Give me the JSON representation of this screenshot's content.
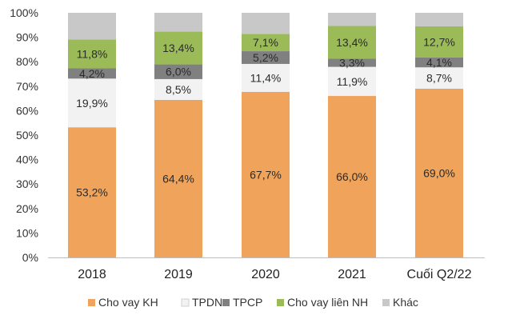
{
  "chart_data": {
    "type": "bar",
    "stacked": true,
    "categories": [
      "2018",
      "2019",
      "2020",
      "2021",
      "Cuối Q2/22"
    ],
    "ylim": [
      0,
      100
    ],
    "yticks": [
      "0%",
      "10%",
      "20%",
      "30%",
      "40%",
      "50%",
      "60%",
      "70%",
      "80%",
      "90%",
      "100%"
    ],
    "ytick_values": [
      0,
      10,
      20,
      30,
      40,
      50,
      60,
      70,
      80,
      90,
      100
    ],
    "series": [
      {
        "name": "Cho vay KH",
        "color": "#F0A35A",
        "values": [
          53.2,
          64.4,
          67.7,
          66.0,
          69.0
        ],
        "labels": [
          "53,2%",
          "64,4%",
          "67,7%",
          "66,0%",
          "69,0%"
        ]
      },
      {
        "name": "TPDN",
        "color": "#F2F2F2",
        "values": [
          19.9,
          8.5,
          11.4,
          11.9,
          8.7
        ],
        "labels": [
          "19,9%",
          "8,5%",
          "11,4%",
          "11,9%",
          "8,7%"
        ]
      },
      {
        "name": "TPCP",
        "color": "#808080",
        "values": [
          4.2,
          6.0,
          5.2,
          3.3,
          4.1
        ],
        "labels": [
          "4,2%",
          "6,0%",
          "5,2%",
          "3,3%",
          "4,1%"
        ]
      },
      {
        "name": "Cho vay liên NH",
        "color": "#9BBB59",
        "values": [
          11.8,
          13.4,
          7.1,
          13.4,
          12.7
        ],
        "labels": [
          "11,8%",
          "13,4%",
          "7,1%",
          "13,4%",
          "12,7%"
        ]
      },
      {
        "name": "Khác",
        "color": "#C8C8C8",
        "values": [
          10.9,
          7.7,
          8.6,
          5.4,
          5.5
        ],
        "labels": []
      }
    ],
    "xlabel": "",
    "ylabel": "",
    "legend_position": "bottom"
  }
}
